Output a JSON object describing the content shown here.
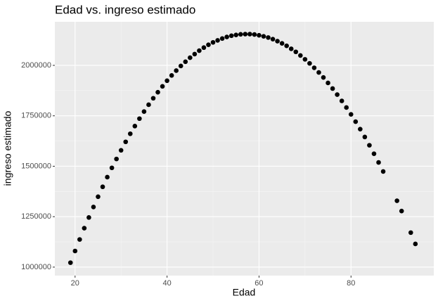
{
  "chart_data": {
    "type": "scatter",
    "title": "Edad vs. ingreso estimado",
    "x_label": "Edad",
    "y_label": "ingreso estimado",
    "color": "#000000",
    "x": [
      19,
      20,
      21,
      22,
      23,
      24,
      25,
      26,
      27,
      28,
      29,
      30,
      31,
      32,
      33,
      34,
      35,
      36,
      37,
      38,
      39,
      40,
      41,
      42,
      43,
      44,
      45,
      46,
      47,
      48,
      49,
      50,
      51,
      52,
      53,
      54,
      55,
      56,
      57,
      58,
      59,
      60,
      61,
      62,
      63,
      64,
      65,
      66,
      67,
      68,
      69,
      70,
      71,
      72,
      73,
      74,
      75,
      76,
      77,
      78,
      79,
      80,
      81,
      82,
      83,
      84,
      85,
      86,
      87,
      90,
      91,
      93,
      94
    ],
    "values": [
      1022000,
      1080000,
      1137000,
      1193000,
      1246000,
      1298000,
      1349000,
      1398000,
      1446000,
      1492000,
      1536000,
      1579000,
      1621000,
      1661000,
      1699000,
      1736000,
      1771000,
      1805000,
      1837000,
      1867000,
      1896000,
      1924000,
      1950000,
      1974000,
      1997000,
      2018000,
      2038000,
      2056000,
      2073000,
      2088000,
      2102000,
      2114000,
      2124000,
      2133000,
      2141000,
      2147000,
      2151000,
      2154000,
      2155000,
      2155000,
      2153000,
      2149000,
      2144000,
      2138000,
      2130000,
      2120000,
      2109000,
      2097000,
      2082000,
      2067000,
      2049000,
      2030000,
      2010000,
      1988000,
      1965000,
      1940000,
      1913000,
      1885000,
      1855000,
      1824000,
      1791000,
      1757000,
      1721000,
      1684000,
      1645000,
      1604000,
      1562000,
      1519000,
      1474000,
      1329000,
      1278000,
      1171000,
      1115000
    ],
    "xlim": [
      15.6,
      98
    ],
    "xticks": [
      20,
      40,
      60,
      80
    ],
    "ylim": [
      958000,
      2216000
    ],
    "yticks": [
      1000000,
      1250000,
      1500000,
      1750000,
      2000000
    ],
    "grid": true
  }
}
